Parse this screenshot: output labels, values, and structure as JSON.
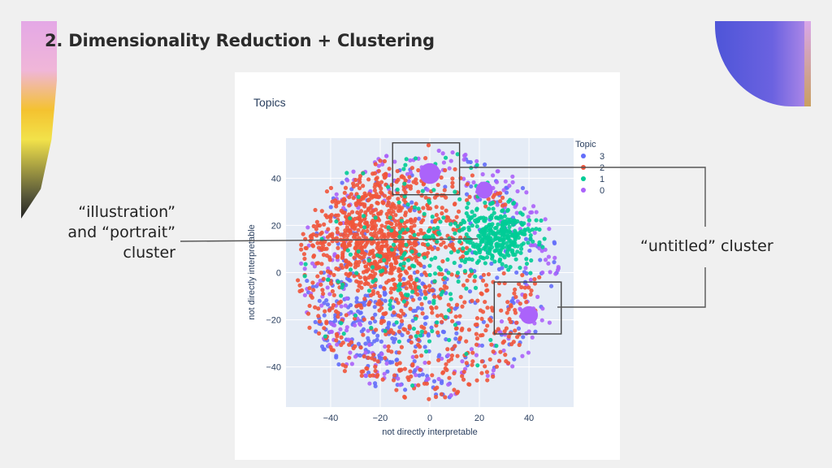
{
  "slide": {
    "title": "2. Dimensionality Reduction + Clustering"
  },
  "callouts": {
    "left_line1": "“illustration”",
    "left_line2": "and “portrait”",
    "left_line3": "cluster",
    "right": "“untitled” cluster"
  },
  "colors": {
    "topic_3": "#636efa",
    "topic_2": "#ef553b",
    "topic_1": "#00cc96",
    "topic_0": "#ab63fa",
    "plot_bg": "#e5ecf6",
    "accent_purple": "#5b57d9"
  },
  "chart_data": {
    "type": "scatter",
    "title": "Topics",
    "xlabel": "not directly interpretable",
    "ylabel": "not directly interpretable",
    "xlim": [
      -58,
      58
    ],
    "ylim": [
      -57,
      57
    ],
    "xticks": [
      -40,
      -20,
      0,
      20,
      40
    ],
    "yticks": [
      -40,
      -20,
      0,
      20,
      40
    ],
    "grid": true,
    "legend_title": "Topic",
    "legend_position": "top-right",
    "series": [
      {
        "name": "3",
        "color": "#636efa"
      },
      {
        "name": "2",
        "color": "#ef553b"
      },
      {
        "name": "1",
        "color": "#00cc96"
      },
      {
        "name": "0",
        "color": "#ab63fa"
      }
    ],
    "annotation_boxes": [
      {
        "x": [
          -15,
          12
        ],
        "y": [
          33,
          55
        ]
      },
      {
        "x": [
          26,
          53
        ],
        "y": [
          -26,
          -4
        ]
      }
    ]
  }
}
